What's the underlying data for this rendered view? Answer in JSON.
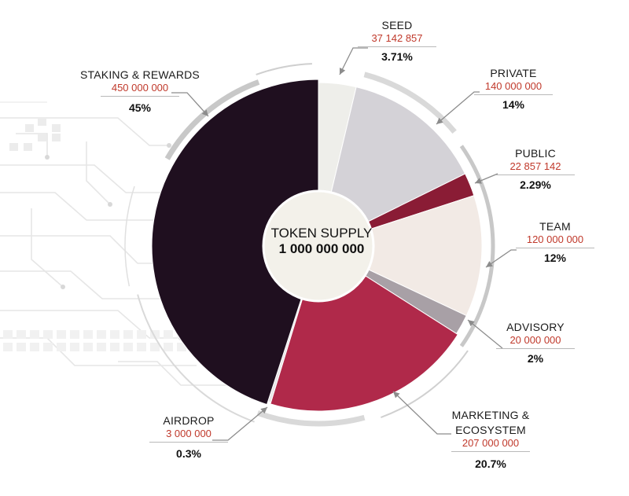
{
  "center": {
    "title": "TOKEN SUPPLY",
    "total": "1 000 000 000"
  },
  "colors": {
    "background": "#ffffff",
    "accent_red": "#c0392b",
    "ring_gray": "#c8c8c8",
    "circuit_gray": "#e6e6e6"
  },
  "chart_data": {
    "type": "pie",
    "total": 1000000000,
    "slices": [
      {
        "name": "SEED",
        "amount_label": "37 142 857",
        "value": 37142857,
        "percent_label": "3.71%",
        "color": "#eeeeea"
      },
      {
        "name": "PRIVATE",
        "amount_label": "140 000 000",
        "value": 140000000,
        "percent_label": "14%",
        "color": "#d4d2d7"
      },
      {
        "name": "PUBLIC",
        "amount_label": "22 857 142",
        "value": 22857142,
        "percent_label": "2.29%",
        "color": "#8a1c35"
      },
      {
        "name": "TEAM",
        "amount_label": "120 000 000",
        "value": 120000000,
        "percent_label": "12%",
        "color": "#f2eae5"
      },
      {
        "name": "ADVISORY",
        "amount_label": "20 000 000",
        "value": 20000000,
        "percent_label": "2%",
        "color": "#a8a0a6"
      },
      {
        "name": "MARKETING & ECOSYSTEM",
        "name_lines": [
          "MARKETING &",
          "ECOSYSTEM"
        ],
        "amount_label": "207 000 000",
        "value": 207000000,
        "percent_label": "20.7%",
        "color": "#b0294a"
      },
      {
        "name": "AIRDROP",
        "amount_label": "3 000 000",
        "value": 3000000,
        "percent_label": "0.3%",
        "color": "#e8e6e8"
      },
      {
        "name": "STAKING & REWARDS",
        "amount_label": "450 000 000",
        "value": 450000000,
        "percent_label": "45%",
        "color": "#1f0f1f"
      }
    ]
  }
}
